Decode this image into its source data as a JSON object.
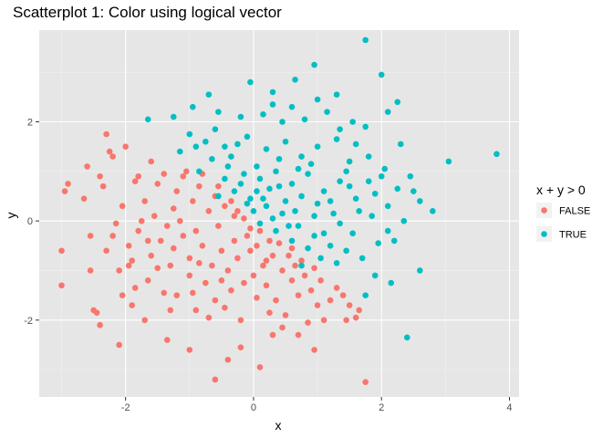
{
  "chart_data": {
    "type": "scatter",
    "title": "Scatterplot 1: Color using logical vector",
    "xlabel": "x",
    "ylabel": "y",
    "xlim": [
      -3.35,
      4.15
    ],
    "ylim": [
      -3.55,
      3.85
    ],
    "x_ticks": [
      -2,
      0,
      2,
      4
    ],
    "y_ticks": [
      -2,
      0,
      2
    ],
    "x_tick_labels": [
      "-2",
      "0",
      "2",
      "4"
    ],
    "y_tick_labels": [
      "-2",
      "0",
      "2"
    ],
    "grid": true,
    "panel_background": "#e6e6e6",
    "legend": {
      "title": "x + y > 0",
      "position": "right",
      "entries": [
        {
          "label": "FALSE",
          "color": "#f8766d"
        },
        {
          "label": "TRUE",
          "color": "#00bfc4"
        }
      ]
    },
    "series": [
      {
        "name": "FALSE",
        "color": "#f8766d",
        "points": [
          [
            -3.0,
            -0.6
          ],
          [
            -3.0,
            -1.3
          ],
          [
            -2.95,
            0.6
          ],
          [
            -2.9,
            0.75
          ],
          [
            -2.6,
            1.1
          ],
          [
            -2.55,
            -1.0
          ],
          [
            -2.5,
            -1.8
          ],
          [
            -2.45,
            -1.85
          ],
          [
            -2.4,
            -2.1
          ],
          [
            -2.4,
            0.9
          ],
          [
            -2.35,
            0.7
          ],
          [
            -2.3,
            1.75
          ],
          [
            -2.25,
            1.4
          ],
          [
            -2.2,
            1.3
          ],
          [
            -2.15,
            -0.05
          ],
          [
            -2.1,
            -1.0
          ],
          [
            -2.05,
            -1.5
          ],
          [
            -2.05,
            0.3
          ],
          [
            -2.0,
            1.5
          ],
          [
            -1.95,
            -0.5
          ],
          [
            -1.9,
            -0.8
          ],
          [
            -1.85,
            -1.35
          ],
          [
            -1.85,
            0.8
          ],
          [
            -1.8,
            -0.2
          ],
          [
            -1.75,
            0.0
          ],
          [
            -1.7,
            0.4
          ],
          [
            -1.65,
            -1.2
          ],
          [
            -1.6,
            -0.7
          ],
          [
            -1.55,
            0.1
          ],
          [
            -1.5,
            0.75
          ],
          [
            -1.45,
            -0.4
          ],
          [
            -1.4,
            -1.45
          ],
          [
            -1.35,
            -0.1
          ],
          [
            -1.3,
            -0.9
          ],
          [
            -1.25,
            0.25
          ],
          [
            -1.2,
            0.6
          ],
          [
            -1.2,
            -1.5
          ],
          [
            -1.15,
            0.0
          ],
          [
            -1.1,
            -0.3
          ],
          [
            -1.05,
            1.0
          ],
          [
            -1.0,
            -0.75
          ],
          [
            -1.0,
            -1.1
          ],
          [
            -0.95,
            0.4
          ],
          [
            -0.9,
            -0.2
          ],
          [
            -0.9,
            -1.8
          ],
          [
            -0.85,
            0.7
          ],
          [
            -0.8,
            -0.5
          ],
          [
            -0.75,
            -1.25
          ],
          [
            -0.7,
            0.2
          ],
          [
            -0.65,
            -0.9
          ],
          [
            -0.6,
            0.5
          ],
          [
            -0.6,
            -1.6
          ],
          [
            -0.55,
            -0.1
          ],
          [
            -0.5,
            -0.6
          ],
          [
            -0.45,
            0.3
          ],
          [
            -0.4,
            -1.0
          ],
          [
            -0.35,
            -1.4
          ],
          [
            -0.3,
            0.1
          ],
          [
            -0.3,
            -0.4
          ],
          [
            -0.25,
            -0.75
          ],
          [
            -0.2,
            -2.0
          ],
          [
            -0.15,
            0.05
          ],
          [
            -0.1,
            -0.3
          ],
          [
            -0.05,
            -0.6
          ],
          [
            0.0,
            -1.1
          ],
          [
            0.05,
            -0.5
          ],
          [
            0.1,
            -0.2
          ],
          [
            0.15,
            -0.9
          ],
          [
            0.2,
            -1.3
          ],
          [
            0.25,
            -0.4
          ],
          [
            0.3,
            -0.7
          ],
          [
            0.35,
            -1.6
          ],
          [
            0.4,
            -0.45
          ],
          [
            0.45,
            -1.0
          ],
          [
            0.5,
            -1.9
          ],
          [
            0.55,
            -0.7
          ],
          [
            0.6,
            -1.2
          ],
          [
            0.65,
            -0.9
          ],
          [
            0.7,
            -1.5
          ],
          [
            0.75,
            -0.8
          ],
          [
            0.8,
            -1.1
          ],
          [
            0.85,
            -2.05
          ],
          [
            0.9,
            -1.4
          ],
          [
            0.95,
            -2.6
          ],
          [
            1.0,
            -1.7
          ],
          [
            1.05,
            -1.2
          ],
          [
            1.1,
            -2.0
          ],
          [
            1.2,
            -1.6
          ],
          [
            1.3,
            -1.35
          ],
          [
            1.4,
            -1.5
          ],
          [
            1.5,
            -1.7
          ],
          [
            1.6,
            -1.95
          ],
          [
            1.65,
            -1.8
          ],
          [
            -0.6,
            -3.2
          ],
          [
            0.1,
            -2.95
          ],
          [
            1.75,
            -3.25
          ],
          [
            -1.0,
            -2.6
          ],
          [
            -1.35,
            -2.4
          ],
          [
            -2.1,
            -2.5
          ],
          [
            -0.4,
            -2.8
          ],
          [
            0.3,
            -2.3
          ],
          [
            -0.2,
            -2.55
          ],
          [
            0.7,
            -2.3
          ],
          [
            -1.8,
            0.9
          ],
          [
            -2.65,
            0.45
          ],
          [
            -1.6,
            1.2
          ],
          [
            -1.4,
            0.95
          ],
          [
            -1.1,
            0.9
          ],
          [
            -0.8,
            0.95
          ],
          [
            -0.55,
            0.7
          ],
          [
            -0.35,
            0.4
          ],
          [
            -0.25,
            0.2
          ],
          [
            -2.55,
            -0.3
          ],
          [
            -2.3,
            -0.6
          ],
          [
            -1.95,
            -0.9
          ],
          [
            -1.65,
            -0.4
          ],
          [
            -1.25,
            -0.55
          ],
          [
            -0.95,
            -1.45
          ],
          [
            -0.7,
            -1.95
          ],
          [
            -0.45,
            -1.75
          ],
          [
            0.05,
            -1.55
          ],
          [
            0.25,
            -1.85
          ],
          [
            0.45,
            -2.15
          ],
          [
            -0.15,
            -1.25
          ],
          [
            -0.5,
            -1.2
          ],
          [
            -0.85,
            -0.85
          ],
          [
            -1.5,
            -0.95
          ],
          [
            -1.9,
            -1.7
          ],
          [
            -2.2,
            -0.3
          ],
          [
            -1.7,
            -2.0
          ],
          [
            -1.3,
            -1.8
          ],
          [
            1.45,
            -2.0
          ],
          [
            0.95,
            -0.95
          ],
          [
            0.6,
            -0.55
          ],
          [
            0.2,
            -0.8
          ],
          [
            -0.05,
            -0.15
          ]
        ]
      },
      {
        "name": "TRUE",
        "color": "#00bfc4",
        "points": [
          [
            1.75,
            3.65
          ],
          [
            0.95,
            3.15
          ],
          [
            2.0,
            2.95
          ],
          [
            -0.05,
            2.8
          ],
          [
            0.65,
            2.85
          ],
          [
            -0.7,
            2.55
          ],
          [
            0.3,
            2.6
          ],
          [
            1.3,
            2.55
          ],
          [
            2.25,
            2.4
          ],
          [
            -1.25,
            2.1
          ],
          [
            -0.95,
            2.3
          ],
          [
            -0.55,
            2.2
          ],
          [
            -0.2,
            2.1
          ],
          [
            0.15,
            2.15
          ],
          [
            0.45,
            2.0
          ],
          [
            0.8,
            2.05
          ],
          [
            1.15,
            2.2
          ],
          [
            1.55,
            2.0
          ],
          [
            1.75,
            1.9
          ],
          [
            2.1,
            2.2
          ],
          [
            2.3,
            1.55
          ],
          [
            3.05,
            1.2
          ],
          [
            3.8,
            1.35
          ],
          [
            -1.65,
            2.05
          ],
          [
            -1.0,
            1.75
          ],
          [
            -0.75,
            1.6
          ],
          [
            -0.45,
            1.5
          ],
          [
            -0.1,
            1.7
          ],
          [
            0.2,
            1.45
          ],
          [
            0.5,
            1.6
          ],
          [
            0.75,
            1.3
          ],
          [
            1.0,
            1.5
          ],
          [
            1.3,
            1.65
          ],
          [
            1.5,
            1.2
          ],
          [
            1.8,
            1.3
          ],
          [
            2.05,
            1.05
          ],
          [
            2.45,
            0.9
          ],
          [
            2.6,
            0.4
          ],
          [
            2.35,
            0.0
          ],
          [
            2.1,
            -0.2
          ],
          [
            1.85,
            0.1
          ],
          [
            1.6,
            0.45
          ],
          [
            1.35,
            0.8
          ],
          [
            1.1,
            0.6
          ],
          [
            0.85,
            0.95
          ],
          [
            0.6,
            0.75
          ],
          [
            0.35,
            1.0
          ],
          [
            0.1,
            0.85
          ],
          [
            -0.15,
            0.95
          ],
          [
            -0.4,
            1.1
          ],
          [
            -0.65,
            1.25
          ],
          [
            -0.85,
            1.0
          ],
          [
            -0.3,
            0.6
          ],
          [
            -0.05,
            0.45
          ],
          [
            0.2,
            0.3
          ],
          [
            0.45,
            0.15
          ],
          [
            0.7,
            -0.1
          ],
          [
            0.95,
            -0.3
          ],
          [
            1.2,
            -0.5
          ],
          [
            1.45,
            -0.6
          ],
          [
            1.7,
            -0.75
          ],
          [
            1.95,
            -0.45
          ],
          [
            2.2,
            -0.4
          ],
          [
            2.6,
            -1.0
          ],
          [
            2.15,
            -1.25
          ],
          [
            1.9,
            -1.1
          ],
          [
            1.75,
            -1.5
          ],
          [
            2.4,
            -2.35
          ],
          [
            1.55,
            -0.25
          ],
          [
            1.25,
            0.15
          ],
          [
            1.0,
            0.35
          ],
          [
            0.75,
            0.5
          ],
          [
            0.5,
            0.4
          ],
          [
            0.25,
            0.65
          ],
          [
            0.0,
            0.2
          ],
          [
            -0.2,
            0.75
          ],
          [
            -0.45,
            0.85
          ],
          [
            0.1,
            -0.05
          ],
          [
            0.35,
            -0.2
          ],
          [
            0.6,
            -0.4
          ],
          [
            0.85,
            -0.55
          ],
          [
            1.1,
            -0.25
          ],
          [
            1.35,
            -0.05
          ],
          [
            1.65,
            0.2
          ],
          [
            1.9,
            0.55
          ],
          [
            2.25,
            0.65
          ],
          [
            2.0,
            0.9
          ],
          [
            1.45,
            1.0
          ],
          [
            0.9,
            1.15
          ],
          [
            0.4,
            1.25
          ],
          [
            0.05,
            1.1
          ],
          [
            -0.35,
            1.3
          ],
          [
            -0.6,
            1.85
          ],
          [
            -1.15,
            1.4
          ],
          [
            0.3,
            2.35
          ],
          [
            0.6,
            2.3
          ],
          [
            1.0,
            2.45
          ],
          [
            1.35,
            1.85
          ],
          [
            1.6,
            1.55
          ],
          [
            2.5,
            0.6
          ],
          [
            2.8,
            0.2
          ],
          [
            1.3,
            -0.85
          ],
          [
            1.05,
            -0.75
          ],
          [
            0.75,
            -0.9
          ],
          [
            0.55,
            -0.1
          ],
          [
            0.15,
            0.45
          ],
          [
            -0.1,
            0.35
          ],
          [
            0.3,
            0.05
          ],
          [
            0.65,
            0.2
          ],
          [
            0.95,
            0.1
          ],
          [
            1.2,
            0.4
          ],
          [
            1.5,
            0.7
          ],
          [
            1.8,
            0.8
          ],
          [
            2.1,
            0.3
          ],
          [
            0.4,
            0.7
          ],
          [
            0.7,
            1.05
          ],
          [
            -0.25,
            1.55
          ],
          [
            -0.9,
            1.5
          ],
          [
            -0.55,
            0.5
          ],
          [
            0.05,
            0.6
          ]
        ]
      }
    ]
  }
}
